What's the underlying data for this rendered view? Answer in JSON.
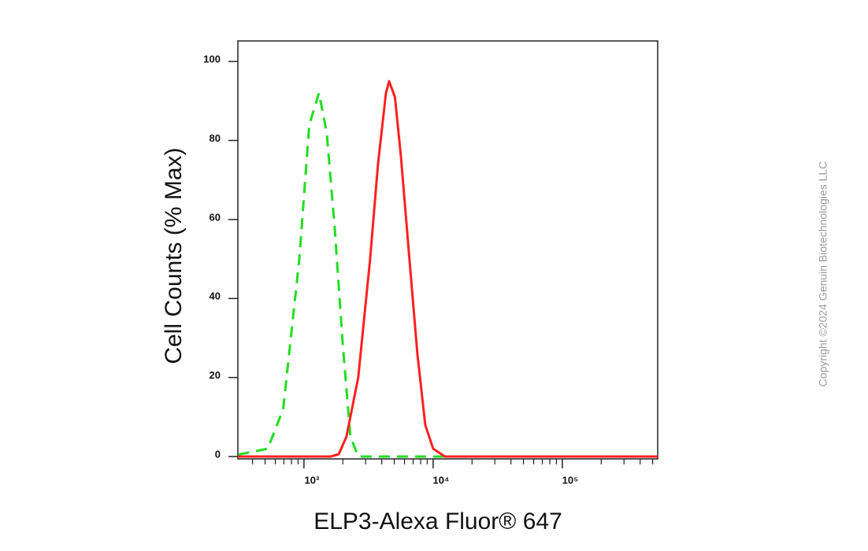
{
  "chart_data": {
    "type": "line",
    "x_label": "ELP3-Alexa Fluor® 647",
    "y_label": "Cell Counts (% Max)",
    "copyright": "Copyright ©2024 Genuin Biotechnologies LLC",
    "x_log": true,
    "xlim": [
      308,
      547000
    ],
    "ylim": [
      -0.6,
      105.2
    ],
    "xticks": [
      {
        "value": 1000,
        "label": "10³"
      },
      {
        "value": 10000,
        "label": "10⁴"
      },
      {
        "value": 100000,
        "label": "10⁵"
      }
    ],
    "xminorticks": [
      400,
      500,
      600,
      700,
      800,
      900,
      2000,
      3000,
      4000,
      5000,
      6000,
      7000,
      8000,
      9000,
      20000,
      30000,
      40000,
      50000,
      60000,
      70000,
      80000,
      90000,
      200000,
      300000,
      400000,
      500000
    ],
    "yticks": [
      0,
      20,
      40,
      60,
      80,
      100
    ],
    "series": [
      {
        "color": "#22dd22",
        "dashed": true,
        "x": [
          310,
          525,
          690,
          920,
          1100,
          1306,
          1500,
          1730,
          2000,
          2290,
          2630,
          10000,
          547000
        ],
        "values": [
          0.5,
          2,
          12,
          50,
          84,
          92,
          82,
          58,
          28,
          5,
          0,
          0,
          0
        ]
      },
      {
        "color": "#ff2020",
        "dashed": false,
        "x": [
          308,
          1610,
          1860,
          2130,
          2630,
          3250,
          3740,
          4310,
          4560,
          5060,
          5630,
          6550,
          7550,
          8690,
          10000,
          12340,
          547000
        ],
        "values": [
          0,
          0,
          0.6,
          5,
          20,
          50,
          74,
          92,
          95,
          91,
          76,
          50,
          26,
          8,
          2,
          0,
          0
        ]
      }
    ]
  }
}
